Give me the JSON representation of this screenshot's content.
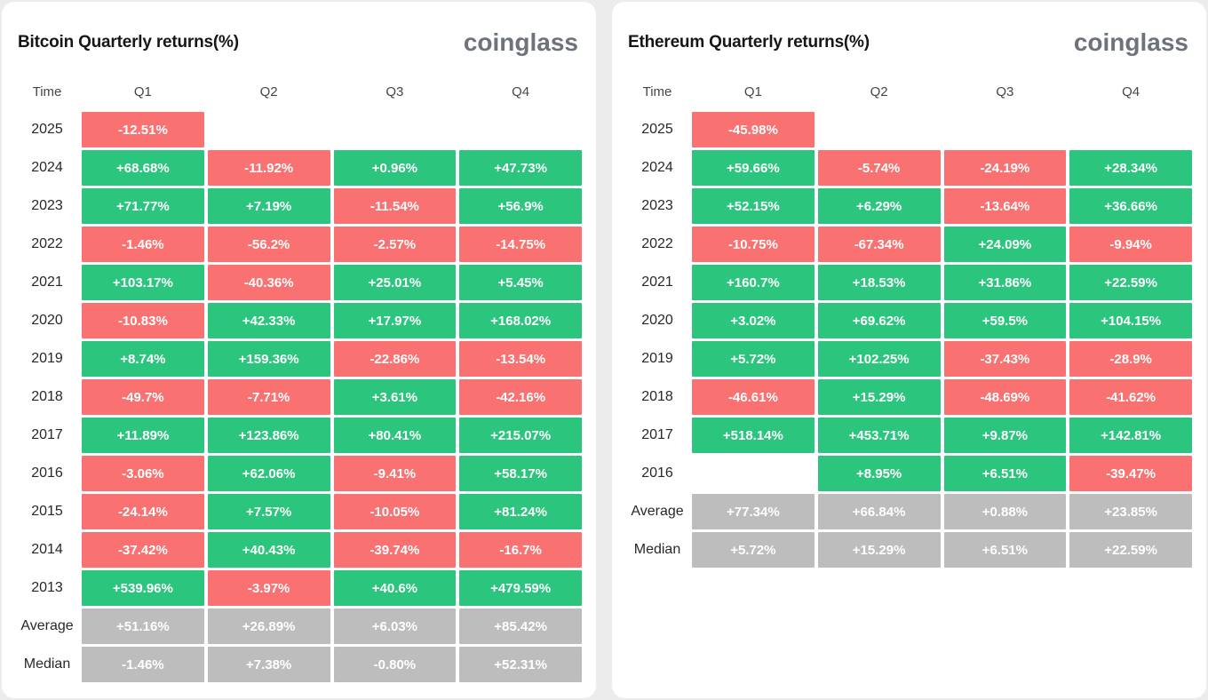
{
  "colors": {
    "positive": "#2bc57e",
    "negative": "#f97170",
    "summary": "#bdbdbd",
    "card_background": "#ffffff",
    "page_background": "#ececec",
    "logo_gray": "#6d727b"
  },
  "chart_data": [
    {
      "type": "table",
      "title": "Bitcoin Quarterly returns(%)",
      "brand": "coinglass",
      "columns": [
        "Time",
        "Q1",
        "Q2",
        "Q3",
        "Q4"
      ],
      "cell_color_rule": "positive values green, negative values red, Average/Median rows gray, missing values blank",
      "rows": [
        {
          "label": "2025",
          "values": [
            "-12.51%",
            null,
            null,
            null
          ]
        },
        {
          "label": "2024",
          "values": [
            "+68.68%",
            "-11.92%",
            "+0.96%",
            "+47.73%"
          ]
        },
        {
          "label": "2023",
          "values": [
            "+71.77%",
            "+7.19%",
            "-11.54%",
            "+56.9%"
          ]
        },
        {
          "label": "2022",
          "values": [
            "-1.46%",
            "-56.2%",
            "-2.57%",
            "-14.75%"
          ]
        },
        {
          "label": "2021",
          "values": [
            "+103.17%",
            "-40.36%",
            "+25.01%",
            "+5.45%"
          ]
        },
        {
          "label": "2020",
          "values": [
            "-10.83%",
            "+42.33%",
            "+17.97%",
            "+168.02%"
          ]
        },
        {
          "label": "2019",
          "values": [
            "+8.74%",
            "+159.36%",
            "-22.86%",
            "-13.54%"
          ]
        },
        {
          "label": "2018",
          "values": [
            "-49.7%",
            "-7.71%",
            "+3.61%",
            "-42.16%"
          ]
        },
        {
          "label": "2017",
          "values": [
            "+11.89%",
            "+123.86%",
            "+80.41%",
            "+215.07%"
          ]
        },
        {
          "label": "2016",
          "values": [
            "-3.06%",
            "+62.06%",
            "-9.41%",
            "+58.17%"
          ]
        },
        {
          "label": "2015",
          "values": [
            "-24.14%",
            "+7.57%",
            "-10.05%",
            "+81.24%"
          ]
        },
        {
          "label": "2014",
          "values": [
            "-37.42%",
            "+40.43%",
            "-39.74%",
            "-16.7%"
          ]
        },
        {
          "label": "2013",
          "values": [
            "+539.96%",
            "-3.97%",
            "+40.6%",
            "+479.59%"
          ]
        },
        {
          "label": "Average",
          "summary": true,
          "values": [
            "+51.16%",
            "+26.89%",
            "+6.03%",
            "+85.42%"
          ]
        },
        {
          "label": "Median",
          "summary": true,
          "values": [
            "-1.46%",
            "+7.38%",
            "-0.80%",
            "+52.31%"
          ]
        }
      ]
    },
    {
      "type": "table",
      "title": "Ethereum Quarterly returns(%)",
      "brand": "coinglass",
      "columns": [
        "Time",
        "Q1",
        "Q2",
        "Q3",
        "Q4"
      ],
      "cell_color_rule": "positive values green, negative values red, Average/Median rows gray, missing values blank",
      "rows": [
        {
          "label": "2025",
          "values": [
            "-45.98%",
            null,
            null,
            null
          ]
        },
        {
          "label": "2024",
          "values": [
            "+59.66%",
            "-5.74%",
            "-24.19%",
            "+28.34%"
          ]
        },
        {
          "label": "2023",
          "values": [
            "+52.15%",
            "+6.29%",
            "-13.64%",
            "+36.66%"
          ]
        },
        {
          "label": "2022",
          "values": [
            "-10.75%",
            "-67.34%",
            "+24.09%",
            "-9.94%"
          ]
        },
        {
          "label": "2021",
          "values": [
            "+160.7%",
            "+18.53%",
            "+31.86%",
            "+22.59%"
          ]
        },
        {
          "label": "2020",
          "values": [
            "+3.02%",
            "+69.62%",
            "+59.5%",
            "+104.15%"
          ]
        },
        {
          "label": "2019",
          "values": [
            "+5.72%",
            "+102.25%",
            "-37.43%",
            "-28.9%"
          ]
        },
        {
          "label": "2018",
          "values": [
            "-46.61%",
            "+15.29%",
            "-48.69%",
            "-41.62%"
          ]
        },
        {
          "label": "2017",
          "values": [
            "+518.14%",
            "+453.71%",
            "+9.87%",
            "+142.81%"
          ]
        },
        {
          "label": "2016",
          "values": [
            null,
            "+8.95%",
            "+6.51%",
            "-39.47%"
          ]
        },
        {
          "label": "Average",
          "summary": true,
          "values": [
            "+77.34%",
            "+66.84%",
            "+0.88%",
            "+23.85%"
          ]
        },
        {
          "label": "Median",
          "summary": true,
          "values": [
            "+5.72%",
            "+15.29%",
            "+6.51%",
            "+22.59%"
          ]
        }
      ]
    }
  ]
}
